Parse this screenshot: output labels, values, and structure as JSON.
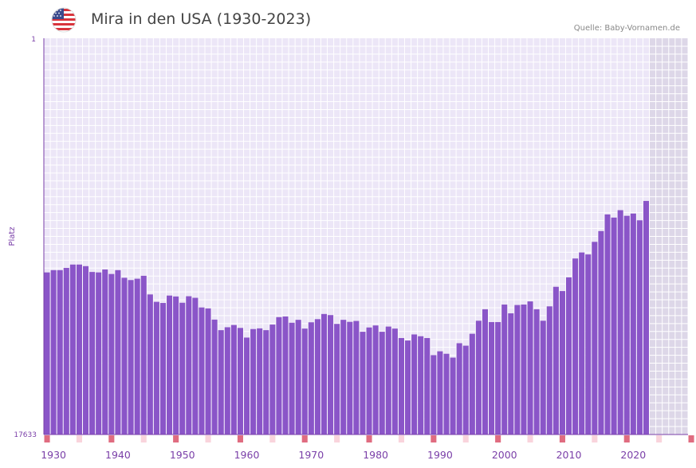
{
  "header": {
    "title": "Mira in den USA (1930-2023)",
    "source": "Quelle: Baby-Vornamen.de",
    "flag_icon": "us-flag-icon"
  },
  "colors": {
    "bar": "#8a55c8",
    "plot_bg": "#ece6f7",
    "future_bg": "#ddd7e8",
    "axis": "#7a3fa8",
    "marker_strong": "#e06c80",
    "marker_light": "#f9d4dc"
  },
  "chart_data": {
    "type": "bar",
    "title": "Mira in den USA (1930-2023)",
    "xlabel": "",
    "ylabel": "Platz",
    "y_inverted": true,
    "ylim": [
      1,
      17633
    ],
    "ytick_labels": [
      "1",
      "17633"
    ],
    "xlim": [
      1929,
      2029
    ],
    "xtick_values": [
      1930,
      1940,
      1950,
      1960,
      1970,
      1980,
      1990,
      2000,
      2010,
      2020
    ],
    "future_start": 2023,
    "grid": true,
    "categories": [
      1929,
      1930,
      1931,
      1932,
      1933,
      1934,
      1935,
      1936,
      1937,
      1938,
      1939,
      1940,
      1941,
      1942,
      1943,
      1944,
      1945,
      1946,
      1947,
      1948,
      1949,
      1950,
      1951,
      1952,
      1953,
      1954,
      1955,
      1956,
      1957,
      1958,
      1959,
      1960,
      1961,
      1962,
      1963,
      1964,
      1965,
      1966,
      1967,
      1968,
      1969,
      1970,
      1971,
      1972,
      1973,
      1974,
      1975,
      1976,
      1977,
      1978,
      1979,
      1980,
      1981,
      1982,
      1983,
      1984,
      1985,
      1986,
      1987,
      1988,
      1989,
      1990,
      1991,
      1992,
      1993,
      1994,
      1995,
      1996,
      1997,
      1998,
      1999,
      2000,
      2001,
      2002,
      2003,
      2004,
      2005,
      2006,
      2007,
      2008,
      2009,
      2010,
      2011,
      2012,
      2013,
      2014,
      2015,
      2016,
      2017,
      2018,
      2019,
      2020,
      2021,
      2022
    ],
    "values": [
      10420,
      10320,
      10320,
      10220,
      10070,
      10070,
      10140,
      10400,
      10420,
      10290,
      10490,
      10320,
      10660,
      10760,
      10700,
      10570,
      11400,
      11730,
      11780,
      11450,
      11490,
      11770,
      11480,
      11550,
      11980,
      12020,
      12520,
      12990,
      12860,
      12760,
      12890,
      13320,
      12940,
      12910,
      12990,
      12740,
      12410,
      12380,
      12660,
      12530,
      12920,
      12640,
      12500,
      12270,
      12320,
      12710,
      12530,
      12620,
      12580,
      13060,
      12870,
      12780,
      13060,
      12830,
      12920,
      13340,
      13450,
      13180,
      13260,
      13340,
      14100,
      13930,
      14040,
      14210,
      13570,
      13680,
      13150,
      12570,
      12060,
      12630,
      12630,
      11850,
      12240,
      11870,
      11850,
      11710,
      12060,
      12570,
      11930,
      11060,
      11250,
      10640,
      9800,
      9530,
      9620,
      9060,
      8580,
      7840,
      7980,
      7650,
      7900,
      7800,
      8100,
      7240
    ],
    "decade_markers": [
      1929,
      1934,
      1939,
      1944,
      1949,
      1954,
      1959,
      1964,
      1969,
      1974,
      1979,
      1984,
      1989,
      1994,
      1999,
      2004,
      2009,
      2014,
      2019,
      2024,
      2029
    ],
    "decade_marker_strength": [
      "strong",
      "light",
      "strong",
      "light",
      "strong",
      "light",
      "strong",
      "light",
      "strong",
      "light",
      "strong",
      "light",
      "strong",
      "light",
      "strong",
      "light",
      "strong",
      "light",
      "strong",
      "light",
      "strong"
    ]
  }
}
